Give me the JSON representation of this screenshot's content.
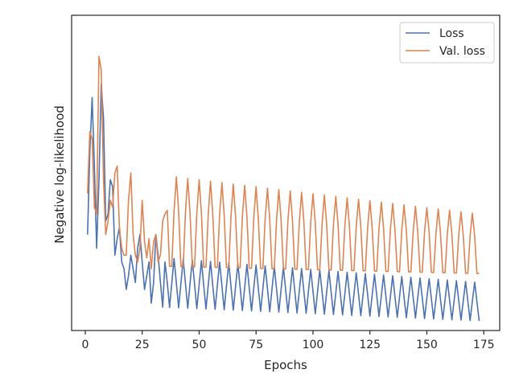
{
  "chart_data": {
    "type": "line",
    "title": "",
    "xlabel": "Epochs",
    "ylabel": "Negative log-likelihood",
    "xlim": [
      -6,
      182
    ],
    "ylim": [
      0.75,
      3.05
    ],
    "x_ticks": [
      0,
      25,
      50,
      75,
      100,
      125,
      150,
      175
    ],
    "x_tick_labels": [
      "0",
      "25",
      "50",
      "75",
      "100",
      "125",
      "150",
      "175"
    ],
    "y_ticks_labeled": false,
    "grid": false,
    "legend_position": "top-right",
    "series": [
      {
        "name": "Loss",
        "color": "#4c72b0",
        "keypoints": [
          [
            1,
            1.45
          ],
          [
            2,
            2.05
          ],
          [
            3,
            2.45
          ],
          [
            4,
            1.95
          ],
          [
            5,
            1.35
          ],
          [
            6,
            1.85
          ],
          [
            7,
            2.55
          ],
          [
            8,
            2.3
          ],
          [
            9,
            1.55
          ],
          [
            10,
            1.6
          ],
          [
            11,
            1.85
          ],
          [
            12,
            1.8
          ],
          [
            13,
            1.3
          ],
          [
            14,
            1.42
          ],
          [
            15,
            1.5
          ],
          [
            16,
            1.25
          ],
          [
            17,
            1.2
          ],
          [
            18,
            1.05
          ],
          [
            19,
            1.15
          ],
          [
            20,
            1.3
          ],
          [
            21,
            1.2
          ],
          [
            22,
            1.1
          ],
          [
            23,
            1.35
          ],
          [
            24,
            1.45
          ],
          [
            25,
            1.25
          ],
          [
            26,
            1.05
          ],
          [
            27,
            1.15
          ],
          [
            28,
            1.25
          ],
          [
            29,
            0.95
          ],
          [
            30,
            1.1
          ],
          [
            31,
            1.45
          ],
          [
            32,
            1.3
          ],
          [
            33,
            1.1
          ],
          [
            34,
            0.92
          ],
          [
            35,
            1.25
          ]
        ],
        "pattern": {
          "from_epoch": 35,
          "to_epoch": 173,
          "period": 4,
          "trough_start": 0.92,
          "trough_end": 0.82,
          "peak_start": 1.28,
          "peak_end": 1.1
        }
      },
      {
        "name": "Val. loss",
        "color": "#dd8452",
        "keypoints": [
          [
            1,
            1.75
          ],
          [
            2,
            2.2
          ],
          [
            3,
            2.15
          ],
          [
            4,
            1.65
          ],
          [
            5,
            1.6
          ],
          [
            6,
            2.75
          ],
          [
            7,
            2.65
          ],
          [
            8,
            1.85
          ],
          [
            9,
            1.45
          ],
          [
            10,
            1.55
          ],
          [
            11,
            1.7
          ],
          [
            12,
            1.65
          ],
          [
            13,
            1.9
          ],
          [
            14,
            1.95
          ],
          [
            15,
            1.5
          ],
          [
            16,
            1.35
          ],
          [
            17,
            1.3
          ],
          [
            18,
            1.3
          ],
          [
            19,
            1.7
          ],
          [
            20,
            1.9
          ],
          [
            21,
            1.45
          ],
          [
            22,
            1.3
          ],
          [
            23,
            1.25
          ],
          [
            24,
            1.35
          ],
          [
            25,
            1.7
          ],
          [
            26,
            1.4
          ],
          [
            27,
            1.28
          ],
          [
            28,
            1.42
          ],
          [
            29,
            1.2
          ],
          [
            30,
            1.4
          ],
          [
            31,
            1.45
          ],
          [
            32,
            1.25
          ],
          [
            33,
            1.3
          ],
          [
            34,
            1.55
          ],
          [
            35,
            1.6
          ]
        ],
        "pattern": {
          "from_epoch": 35,
          "to_epoch": 173,
          "period": 5,
          "trough_start": 1.15,
          "trough_end": 1.12,
          "peak_start": 1.88,
          "peak_end": 1.6
        }
      }
    ]
  }
}
